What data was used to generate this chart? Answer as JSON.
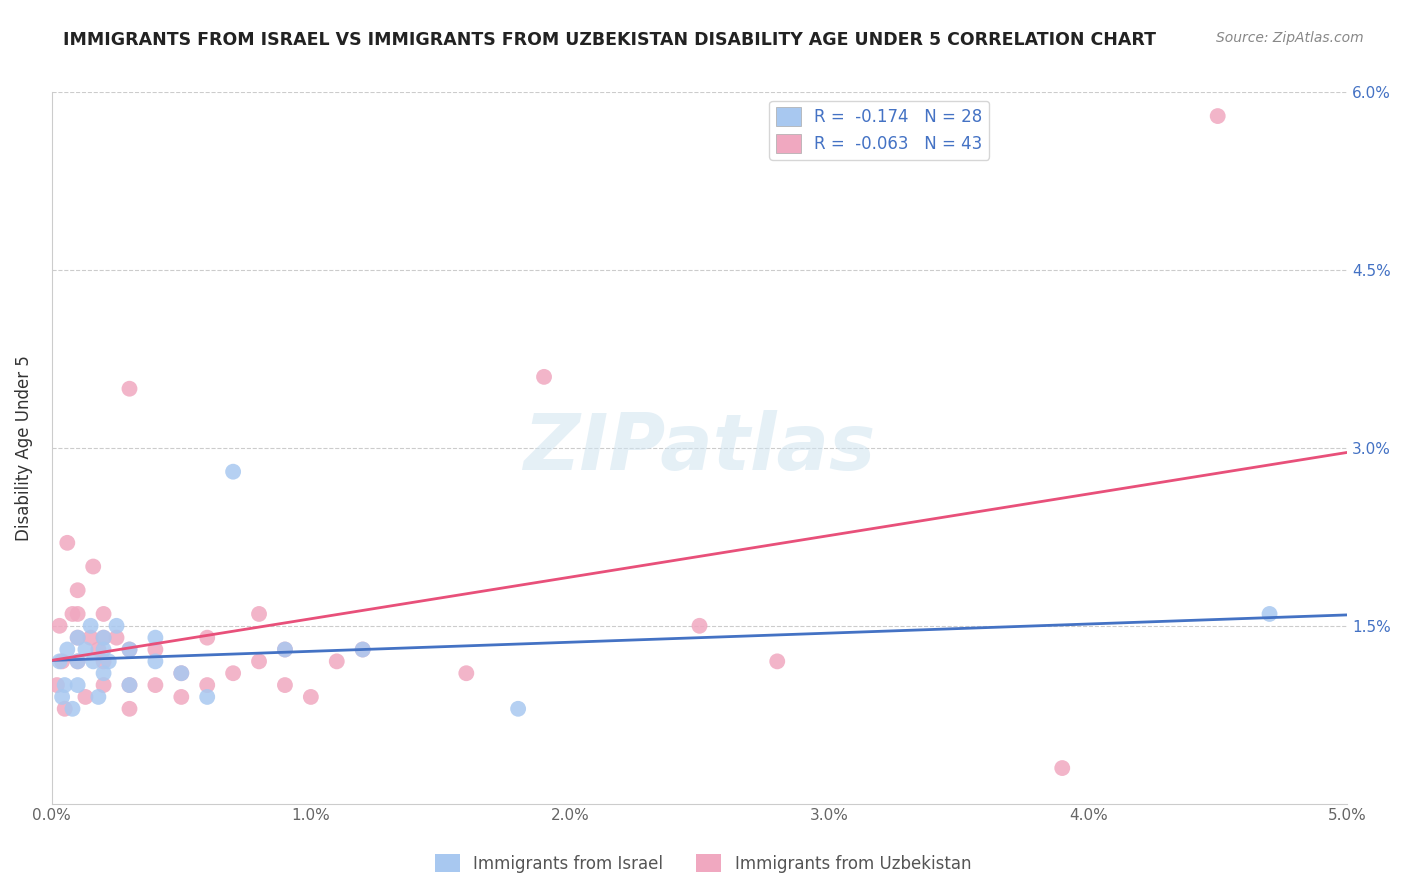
{
  "title": "IMMIGRANTS FROM ISRAEL VS IMMIGRANTS FROM UZBEKISTAN DISABILITY AGE UNDER 5 CORRELATION CHART",
  "source": "Source: ZipAtlas.com",
  "ylabel": "Disability Age Under 5",
  "xlim": [
    0.0,
    0.05
  ],
  "ylim": [
    0.0,
    0.06
  ],
  "x_ticks": [
    0.0,
    0.01,
    0.02,
    0.03,
    0.04,
    0.05
  ],
  "x_tick_labels": [
    "0.0%",
    "1.0%",
    "2.0%",
    "3.0%",
    "4.0%",
    "5.0%"
  ],
  "y_ticks": [
    0.0,
    0.015,
    0.03,
    0.045,
    0.06
  ],
  "y_tick_labels": [
    "",
    "1.5%",
    "3.0%",
    "4.5%",
    "6.0%"
  ],
  "legend_israel_R": "-0.174",
  "legend_israel_N": "28",
  "legend_uzbek_R": "-0.063",
  "legend_uzbek_N": "43",
  "israel_color": "#a8c8f0",
  "uzbek_color": "#f0a8c0",
  "israel_line_color": "#4472c4",
  "uzbek_line_color": "#e8507a",
  "legend_labels": [
    "Immigrants from Israel",
    "Immigrants from Uzbekistan"
  ],
  "israel_x": [
    0.0003,
    0.0004,
    0.0005,
    0.0006,
    0.0008,
    0.001,
    0.001,
    0.001,
    0.0013,
    0.0015,
    0.0016,
    0.0018,
    0.002,
    0.002,
    0.002,
    0.0022,
    0.0025,
    0.003,
    0.003,
    0.004,
    0.004,
    0.005,
    0.006,
    0.007,
    0.009,
    0.012,
    0.018,
    0.047
  ],
  "israel_y": [
    0.012,
    0.009,
    0.01,
    0.013,
    0.008,
    0.014,
    0.012,
    0.01,
    0.013,
    0.015,
    0.012,
    0.009,
    0.013,
    0.011,
    0.014,
    0.012,
    0.015,
    0.013,
    0.01,
    0.012,
    0.014,
    0.011,
    0.009,
    0.028,
    0.013,
    0.013,
    0.008,
    0.016
  ],
  "uzbek_x": [
    0.0002,
    0.0003,
    0.0004,
    0.0005,
    0.0006,
    0.0008,
    0.001,
    0.001,
    0.001,
    0.001,
    0.0013,
    0.0015,
    0.0016,
    0.0018,
    0.002,
    0.002,
    0.002,
    0.002,
    0.0025,
    0.003,
    0.003,
    0.003,
    0.003,
    0.004,
    0.004,
    0.005,
    0.005,
    0.006,
    0.006,
    0.007,
    0.008,
    0.008,
    0.009,
    0.009,
    0.01,
    0.011,
    0.012,
    0.016,
    0.019,
    0.025,
    0.028,
    0.039,
    0.045
  ],
  "uzbek_y": [
    0.01,
    0.015,
    0.012,
    0.008,
    0.022,
    0.016,
    0.012,
    0.014,
    0.018,
    0.016,
    0.009,
    0.014,
    0.02,
    0.013,
    0.01,
    0.014,
    0.016,
    0.012,
    0.014,
    0.035,
    0.013,
    0.01,
    0.008,
    0.013,
    0.01,
    0.009,
    0.011,
    0.01,
    0.014,
    0.011,
    0.016,
    0.012,
    0.013,
    0.01,
    0.009,
    0.012,
    0.013,
    0.011,
    0.036,
    0.015,
    0.012,
    0.003,
    0.058
  ]
}
